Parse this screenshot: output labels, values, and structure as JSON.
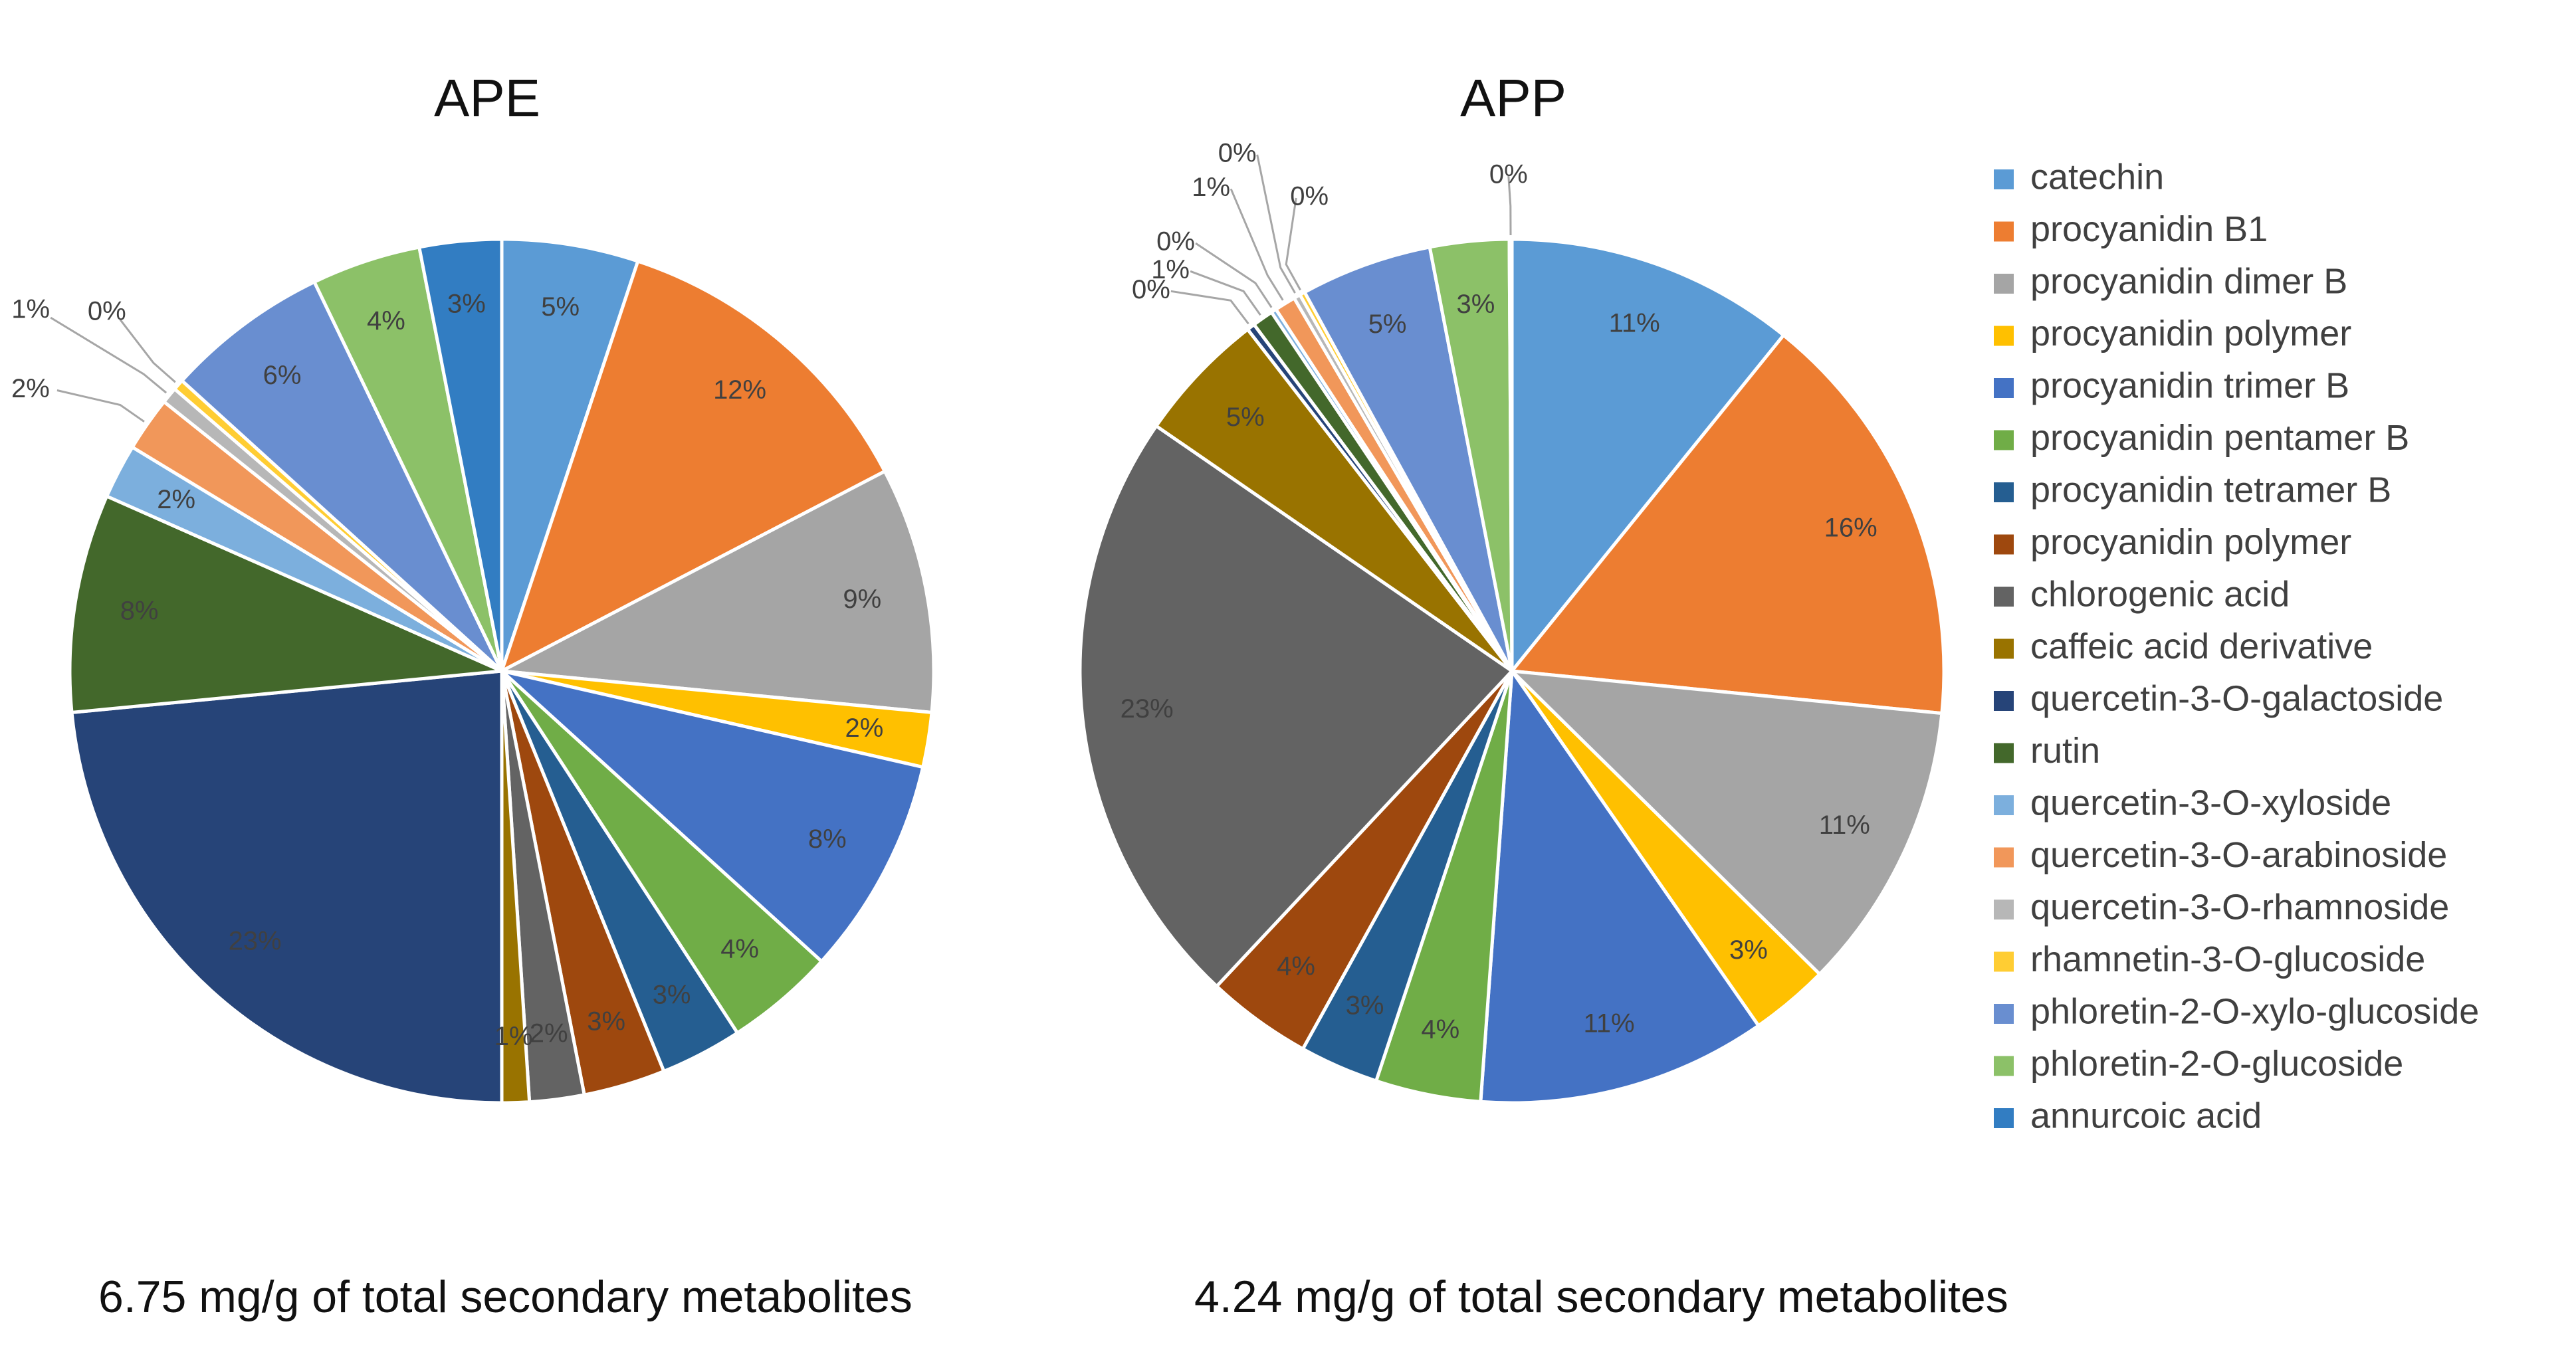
{
  "chart_data": [
    {
      "type": "pie",
      "title": "APE",
      "caption": "6.75 mg/g of total secondary metabolites",
      "categories": [
        "catechin",
        "procyanidin B1",
        "procyanidin dimer B",
        "procyanidin polymer",
        "procyanidin trimer B",
        "procyanidin pentamer B",
        "procyanidin tetramer B",
        "procyanidin polymer",
        "chlorogenic acid",
        "caffeic acid derivative",
        "quercetin-3-O-galactoside",
        "rutin",
        "quercetin-3-O-xyloside",
        "quercetin-3-O-arabinoside",
        "quercetin-3-O-rhamnoside",
        "rhamnetin-3-O-glucoside",
        "phloretin-2-O-xylo-glucoside",
        "phloretin-2-O-glucoside",
        "annurcoic acid"
      ],
      "values": [
        5.0,
        12.0,
        9.0,
        2.0,
        8.0,
        4.0,
        3.0,
        3.0,
        2.0,
        1.0,
        23.0,
        8.0,
        2.0,
        2.0,
        0.6,
        0.4,
        6.0,
        4.0,
        3.0
      ],
      "labels": [
        "5%",
        "12%",
        "9%",
        "2%",
        "8%",
        "4%",
        "3%",
        "3%",
        "2%",
        "1%",
        "23%",
        "8%",
        "2%",
        "2%",
        "1%",
        "0%",
        "6%",
        "4%",
        "3%"
      ]
    },
    {
      "type": "pie",
      "title": "APP",
      "caption": "4.24 mg/g of total secondary metabolites",
      "categories": [
        "catechin",
        "procyanidin B1",
        "procyanidin dimer B",
        "procyanidin polymer",
        "procyanidin trimer B",
        "procyanidin pentamer B",
        "procyanidin tetramer B",
        "procyanidin polymer",
        "chlorogenic acid",
        "caffeic acid derivative",
        "quercetin-3-O-galactoside",
        "rutin",
        "quercetin-3-O-xyloside",
        "quercetin-3-O-arabinoside",
        "quercetin-3-O-rhamnoside",
        "rhamnetin-3-O-glucoside",
        "phloretin-2-O-xylo-glucoside",
        "phloretin-2-O-glucoside",
        "annurcoic acid"
      ],
      "values": [
        11.0,
        16.0,
        11.0,
        3.0,
        11.0,
        4.0,
        3.0,
        4.0,
        23.0,
        5.0,
        0.3,
        0.8,
        0.2,
        0.8,
        0.25,
        0.2,
        5.0,
        3.0,
        0.1
      ],
      "labels": [
        "11%",
        "16%",
        "11%",
        "3%",
        "11%",
        "4%",
        "3%",
        "4%",
        "23%",
        "5%",
        "0%",
        "1%",
        "0%",
        "1%",
        "0%",
        "0%",
        "5%",
        "3%",
        "0%"
      ]
    }
  ],
  "legend": {
    "position": "right",
    "items": [
      {
        "label": "catechin",
        "color": "#5b9bd5"
      },
      {
        "label": "procyanidin B1",
        "color": "#ed7d31"
      },
      {
        "label": "procyanidin dimer B",
        "color": "#a5a5a5"
      },
      {
        "label": "procyanidin polymer",
        "color": "#ffc000"
      },
      {
        "label": "procyanidin trimer B",
        "color": "#4472c4"
      },
      {
        "label": "procyanidin pentamer B",
        "color": "#70ad47"
      },
      {
        "label": "procyanidin tetramer B",
        "color": "#255e91"
      },
      {
        "label": "procyanidin polymer",
        "color": "#9e480e"
      },
      {
        "label": "chlorogenic acid",
        "color": "#636363"
      },
      {
        "label": "caffeic acid derivative",
        "color": "#997300"
      },
      {
        "label": "quercetin-3-O-galactoside",
        "color": "#264478"
      },
      {
        "label": "rutin",
        "color": "#43682b"
      },
      {
        "label": "quercetin-3-O-xyloside",
        "color": "#7cafdd"
      },
      {
        "label": "quercetin-3-O-arabinoside",
        "color": "#f1975a"
      },
      {
        "label": "quercetin-3-O-rhamnoside",
        "color": "#b7b7b7"
      },
      {
        "label": "rhamnetin-3-O-glucoside",
        "color": "#ffcd33"
      },
      {
        "label": "phloretin-2-O-xylo-glucoside",
        "color": "#698ed0"
      },
      {
        "label": "phloretin-2-O-glucoside",
        "color": "#8cc168"
      },
      {
        "label": "annurcoic acid",
        "color": "#327dc2"
      }
    ]
  }
}
